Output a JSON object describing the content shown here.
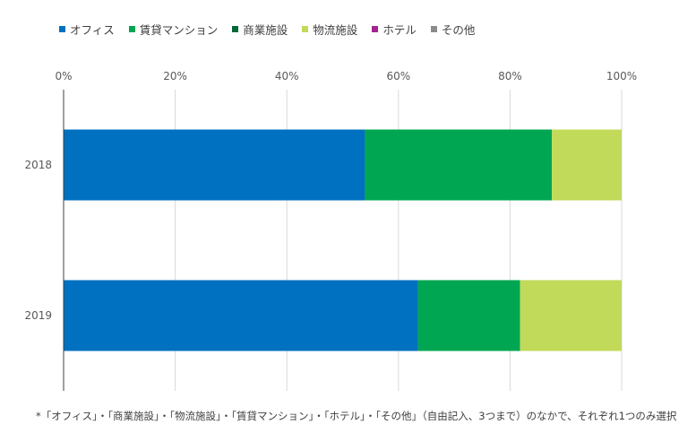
{
  "chart_data": {
    "type": "bar",
    "orientation": "horizontal",
    "stacked": true,
    "categories": [
      "2018",
      "2019"
    ],
    "series": [
      {
        "name": "オフィス",
        "color": "#0070C0",
        "values": [
          54,
          63.5
        ]
      },
      {
        "name": "賃貸マンション",
        "color": "#00A651",
        "values": [
          33.5,
          18.3
        ]
      },
      {
        "name": "商業施設",
        "color": "#006837",
        "values": [
          0,
          0
        ]
      },
      {
        "name": "物流施設",
        "color": "#C1DA5A",
        "values": [
          12.5,
          18.2
        ]
      },
      {
        "name": "ホテル",
        "color": "#A4238E",
        "values": [
          0,
          0
        ]
      },
      {
        "name": "その他",
        "color": "#8C8C8C",
        "values": [
          0,
          0
        ]
      }
    ],
    "xlim": [
      0,
      100
    ],
    "xticks": [
      "0%",
      "20%",
      "40%",
      "60%",
      "80%",
      "100%"
    ],
    "xtick_values": [
      0,
      20,
      40,
      60,
      80,
      100
    ],
    "grid": true,
    "legend_position": "top",
    "footnote": "*「オフィス」・「商業施設」・「物流施設」・「賃貸マンション」・「ホテル」・「その他」（自由記入、3つまで）のなかで、それぞれ1つのみ選択"
  }
}
